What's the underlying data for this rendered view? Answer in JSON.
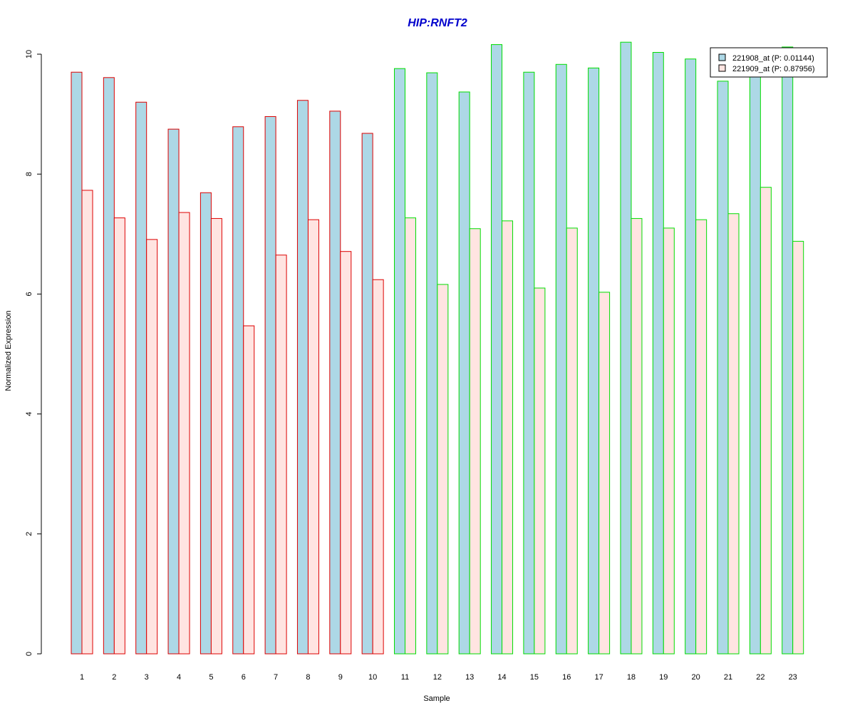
{
  "chart_data": {
    "type": "bar",
    "title": "HIP:RNFT2",
    "xlabel": "Sample",
    "ylabel": "Normalized Expression",
    "ylim": [
      0,
      10
    ],
    "yticks": [
      0,
      2,
      4,
      6,
      8,
      10
    ],
    "grid": false,
    "legend_position": "top-right",
    "categories": [
      "1",
      "2",
      "3",
      "4",
      "5",
      "6",
      "7",
      "8",
      "9",
      "10",
      "11",
      "12",
      "13",
      "14",
      "15",
      "16",
      "17",
      "18",
      "19",
      "20",
      "21",
      "22",
      "23"
    ],
    "series": [
      {
        "name": "221908_at (P: 0.01144)",
        "fill": "#add8e6",
        "values": [
          9.7,
          9.61,
          9.2,
          8.75,
          7.69,
          8.79,
          8.96,
          9.23,
          9.05,
          8.68,
          9.76,
          9.69,
          9.37,
          10.16,
          9.7,
          9.83,
          9.77,
          10.2,
          10.03,
          9.92,
          9.55,
          9.9,
          10.12
        ]
      },
      {
        "name": "221909_at (P: 0.87956)",
        "fill": "#ffe4e1",
        "values": [
          7.73,
          7.27,
          6.91,
          7.36,
          7.26,
          5.47,
          6.65,
          7.24,
          6.71,
          6.24,
          7.27,
          6.16,
          7.09,
          7.22,
          6.1,
          7.1,
          6.03,
          7.26,
          7.1,
          7.24,
          7.34,
          7.78,
          6.88
        ]
      }
    ],
    "group_colors": [
      "#dd0000",
      "#dd0000",
      "#dd0000",
      "#dd0000",
      "#dd0000",
      "#dd0000",
      "#dd0000",
      "#dd0000",
      "#dd0000",
      "#dd0000",
      "#00dd00",
      "#00dd00",
      "#00dd00",
      "#00dd00",
      "#00dd00",
      "#00dd00",
      "#00dd00",
      "#00dd00",
      "#00dd00",
      "#00dd00",
      "#00dd00",
      "#00dd00",
      "#00dd00"
    ],
    "title_color": "#0000cc"
  }
}
